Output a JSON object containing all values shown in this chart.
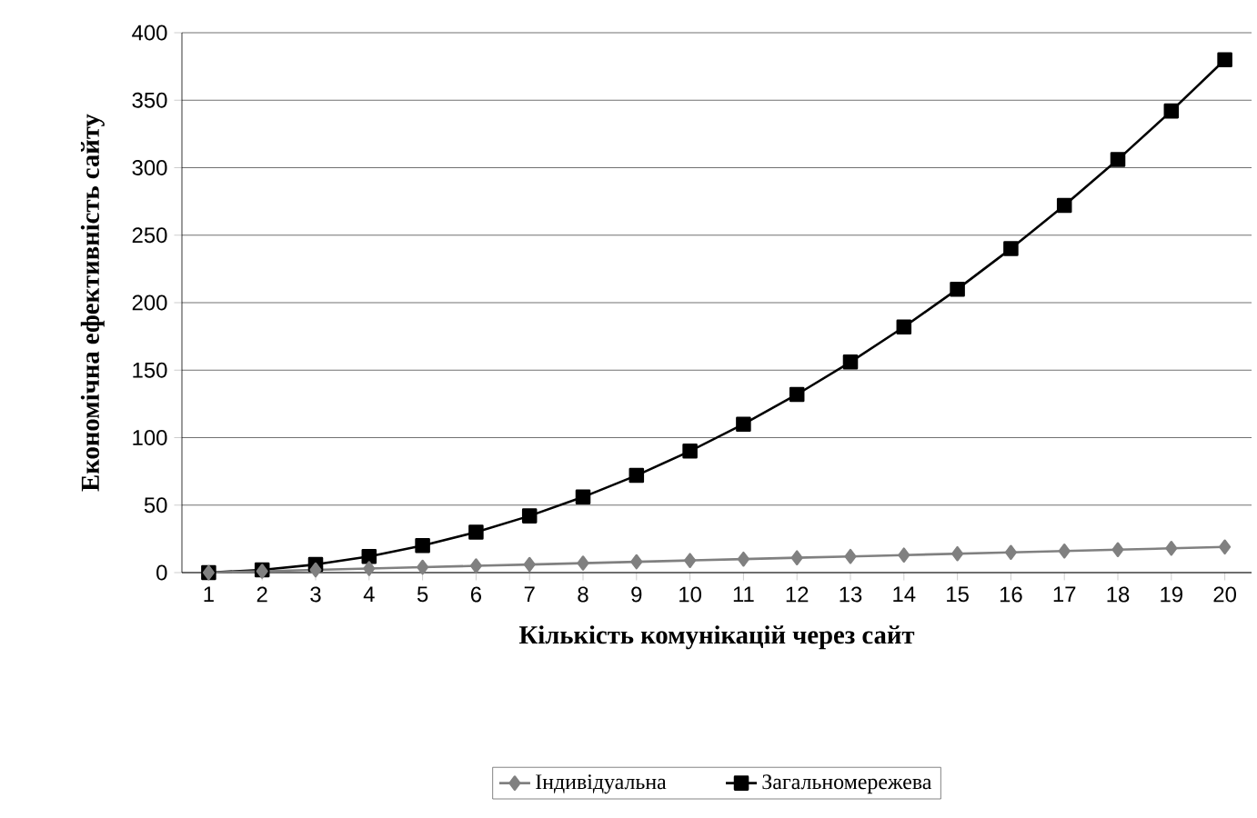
{
  "chart_data": {
    "type": "line",
    "xlabel": "Кількість комунікацій через сайт",
    "ylabel": "Економічна ефективність сайту",
    "categories": [
      "1",
      "2",
      "3",
      "4",
      "5",
      "6",
      "7",
      "8",
      "9",
      "10",
      "11",
      "12",
      "13",
      "14",
      "15",
      "16",
      "17",
      "18",
      "19",
      "20"
    ],
    "series": [
      {
        "name": "Індивідуальна",
        "color": "#808080",
        "marker": "diamond",
        "values": [
          0,
          1,
          2,
          3,
          4,
          5,
          6,
          7,
          8,
          9,
          10,
          11,
          12,
          13,
          14,
          15,
          16,
          17,
          18,
          19
        ]
      },
      {
        "name": "Загальномережева",
        "color": "#000000",
        "marker": "square",
        "values": [
          0,
          2,
          6,
          12,
          20,
          30,
          42,
          56,
          72,
          90,
          110,
          132,
          156,
          182,
          210,
          240,
          272,
          306,
          342,
          380
        ]
      }
    ],
    "ylim": [
      0,
      400
    ],
    "yticks": [
      0,
      50,
      100,
      150,
      200,
      250,
      300,
      350,
      400
    ],
    "grid": "y",
    "legend": "bottom"
  }
}
